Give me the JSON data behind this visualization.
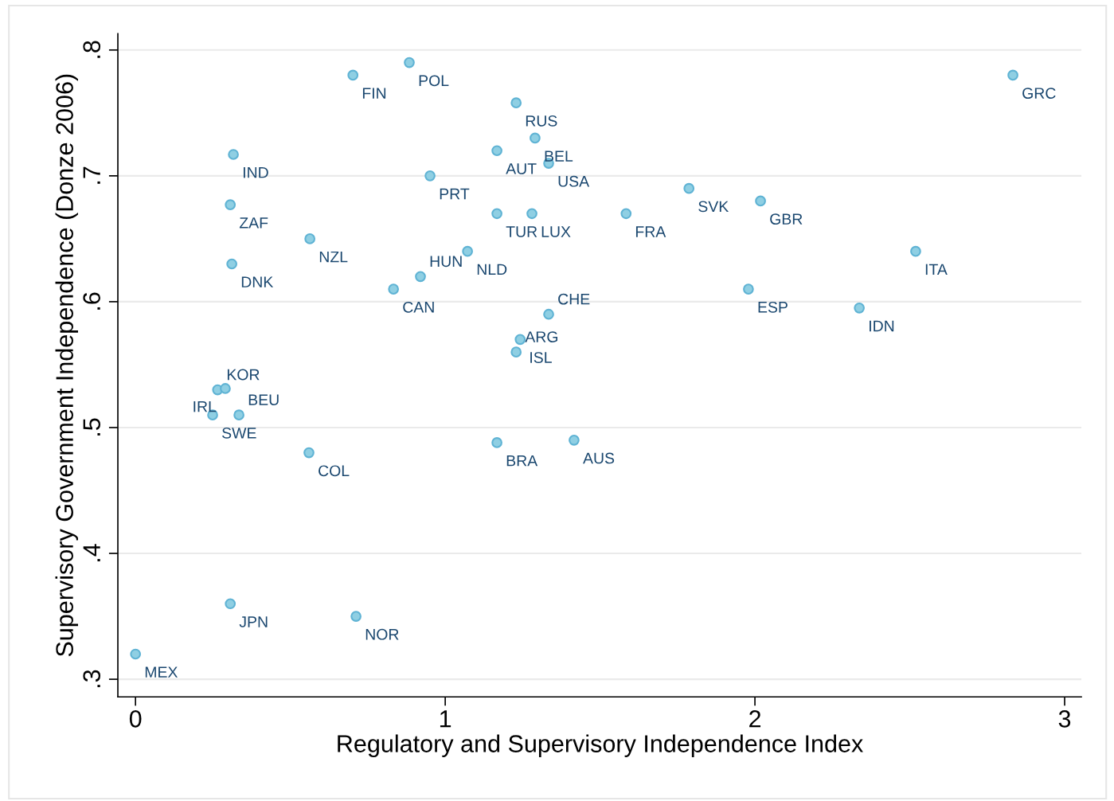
{
  "chart_data": {
    "type": "scatter",
    "xlabel": "Regulatory and Supervisory Independence Index",
    "ylabel": "Supervisory Government Independence (Donze 2006)",
    "xlim": [
      -0.057,
      3.054
    ],
    "ylim": [
      0.286,
      0.813
    ],
    "xticks": [
      0,
      1,
      2,
      3
    ],
    "yticks": [
      {
        "value": 0.3,
        "label": ".3"
      },
      {
        "value": 0.4,
        "label": ".4"
      },
      {
        "value": 0.5,
        "label": ".5"
      },
      {
        "value": 0.6,
        "label": ".6"
      },
      {
        "value": 0.7,
        "label": ".7"
      },
      {
        "value": 0.8,
        "label": ".8"
      }
    ],
    "grid": "y",
    "marker": "circle",
    "series": [
      {
        "color": "#8fcfe3",
        "x": [
          0,
          0.306,
          0.712,
          0.56,
          1.167,
          1.416,
          0.249,
          0.334,
          0.265,
          0.29,
          1.242,
          1.229,
          1.334,
          0.833,
          0.92,
          1.979,
          2.337,
          2.519,
          0.311,
          1.072,
          0.563,
          0.306,
          1.167,
          1.28,
          1.584,
          2.018,
          1.787,
          0.316,
          0.951,
          1.334,
          1.167,
          1.29,
          1.229,
          0.702,
          0.884,
          2.833
        ],
        "values": [
          0.32,
          0.36,
          0.35,
          0.48,
          0.488,
          0.49,
          0.51,
          0.51,
          0.53,
          0.531,
          0.57,
          0.56,
          0.59,
          0.61,
          0.62,
          0.61,
          0.595,
          0.64,
          0.63,
          0.64,
          0.65,
          0.677,
          0.67,
          0.67,
          0.67,
          0.68,
          0.69,
          0.717,
          0.7,
          0.71,
          0.72,
          0.73,
          0.758,
          0.78,
          0.79,
          0.78
        ]
      }
    ],
    "annotations": [
      {
        "text": "MEX",
        "x": 0,
        "y": 0.32
      },
      {
        "text": "JPN",
        "x": 0.306,
        "y": 0.36
      },
      {
        "text": "NOR",
        "x": 0.712,
        "y": 0.35
      },
      {
        "text": "COL",
        "x": 0.56,
        "y": 0.48
      },
      {
        "text": "BRA",
        "x": 1.167,
        "y": 0.488
      },
      {
        "text": "AUS",
        "x": 1.416,
        "y": 0.49
      },
      {
        "text": "SWE",
        "x": 0.249,
        "y": 0.51
      },
      {
        "text": "BEU",
        "x": 0.334,
        "y": 0.51
      },
      {
        "text": "KOR",
        "x": 0.265,
        "y": 0.53
      },
      {
        "text": "IRL",
        "x": 0.29,
        "y": 0.531
      },
      {
        "text": "ISL",
        "x": 1.242,
        "y": 0.57
      },
      {
        "text": "ARG",
        "x": 1.229,
        "y": 0.56
      },
      {
        "text": "CHE",
        "x": 1.334,
        "y": 0.59
      },
      {
        "text": "CAN",
        "x": 0.833,
        "y": 0.61
      },
      {
        "text": "HUN",
        "x": 0.92,
        "y": 0.62
      },
      {
        "text": "ESP",
        "x": 1.979,
        "y": 0.61
      },
      {
        "text": "IDN",
        "x": 2.337,
        "y": 0.595
      },
      {
        "text": "ITA",
        "x": 2.519,
        "y": 0.64
      },
      {
        "text": "DNK",
        "x": 0.311,
        "y": 0.63
      },
      {
        "text": "NLD",
        "x": 1.072,
        "y": 0.64
      },
      {
        "text": "NZL",
        "x": 0.563,
        "y": 0.65
      },
      {
        "text": "ZAF",
        "x": 0.306,
        "y": 0.677
      },
      {
        "text": "TUR",
        "x": 1.167,
        "y": 0.67
      },
      {
        "text": "LUX",
        "x": 1.28,
        "y": 0.67
      },
      {
        "text": "FRA",
        "x": 1.584,
        "y": 0.67
      },
      {
        "text": "GBR",
        "x": 2.018,
        "y": 0.68
      },
      {
        "text": "SVK",
        "x": 1.787,
        "y": 0.69
      },
      {
        "text": "IND",
        "x": 0.316,
        "y": 0.717
      },
      {
        "text": "PRT",
        "x": 0.951,
        "y": 0.7
      },
      {
        "text": "USA",
        "x": 1.334,
        "y": 0.71
      },
      {
        "text": "AUT",
        "x": 1.167,
        "y": 0.72
      },
      {
        "text": "BEL",
        "x": 1.29,
        "y": 0.73
      },
      {
        "text": "RUS",
        "x": 1.229,
        "y": 0.758
      },
      {
        "text": "FIN",
        "x": 0.702,
        "y": 0.78
      },
      {
        "text": "POL",
        "x": 0.884,
        "y": 0.79
      },
      {
        "text": "GRC",
        "x": 2.833,
        "y": 0.78
      }
    ]
  }
}
